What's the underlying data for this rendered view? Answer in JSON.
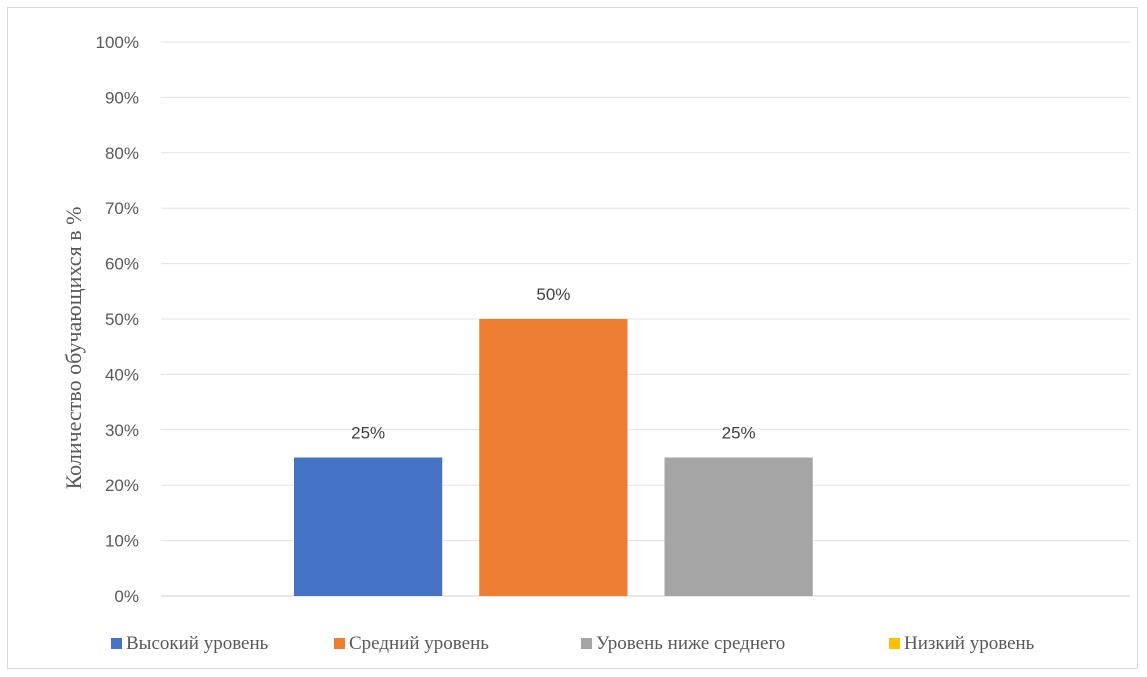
{
  "chart_data": {
    "type": "bar",
    "title": "",
    "xlabel": "",
    "ylabel": "Количество обучающихся в %",
    "ylim": [
      0,
      100
    ],
    "yticks": [
      "0%",
      "10%",
      "20%",
      "30%",
      "40%",
      "50%",
      "60%",
      "70%",
      "80%",
      "90%",
      "100%"
    ],
    "grid": true,
    "legend_position": "bottom",
    "series": [
      {
        "name": "Высокий уровень",
        "value": 25,
        "label": "25%",
        "color": "#4472c4"
      },
      {
        "name": "Средний уровень",
        "value": 50,
        "label": "50%",
        "color": "#ed7d31"
      },
      {
        "name": "Уровень ниже среднего",
        "value": 25,
        "label": "25%",
        "color": "#a5a5a5"
      },
      {
        "name": "Низкий уровень",
        "value": 0,
        "label": "",
        "color": "#ffc000"
      }
    ]
  }
}
